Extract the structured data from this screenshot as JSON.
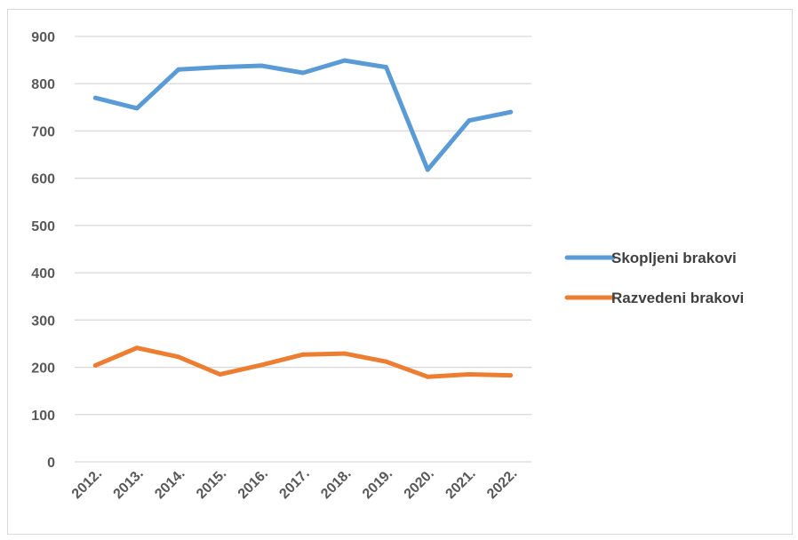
{
  "chart_data": {
    "type": "line",
    "title": "",
    "xlabel": "",
    "ylabel": "",
    "categories": [
      "2012.",
      "2013.",
      "2014.",
      "2015.",
      "2016.",
      "2017.",
      "2018.",
      "2019.",
      "2020.",
      "2021.",
      "2022."
    ],
    "ylim": [
      0,
      900
    ],
    "yticks": [
      "0",
      "100",
      "200",
      "300",
      "400",
      "500",
      "600",
      "700",
      "800",
      "900"
    ],
    "grid": true,
    "legend_position": "right",
    "series": [
      {
        "name": "Skopljeni brakovi",
        "color": "#5b9bd5",
        "values": [
          770,
          748,
          830,
          835,
          838,
          823,
          849,
          835,
          618,
          722,
          740
        ]
      },
      {
        "name": "Razvedeni brakovi",
        "color": "#ed7d31",
        "values": [
          204,
          241,
          222,
          185,
          205,
          227,
          229,
          212,
          180,
          185,
          183
        ]
      }
    ]
  }
}
